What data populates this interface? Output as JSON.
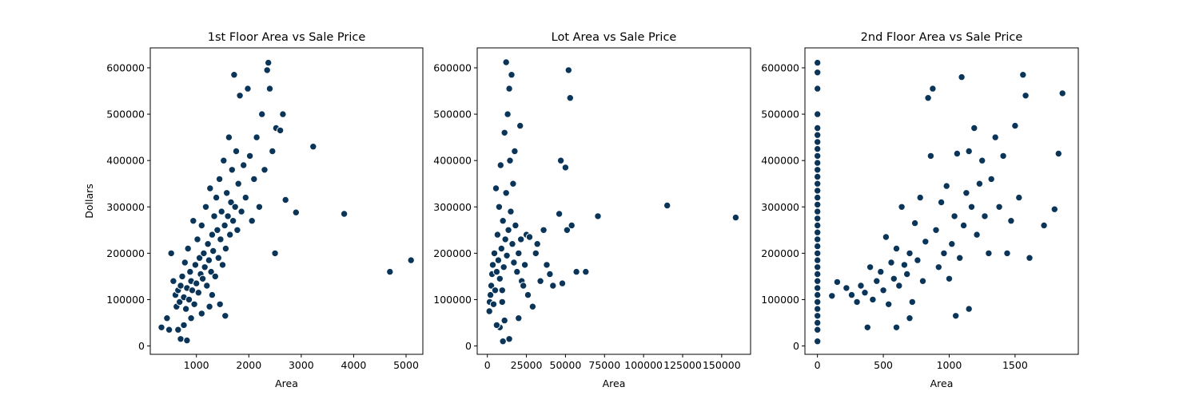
{
  "chart_data": [
    {
      "type": "scatter",
      "title": "1st Floor Area vs Sale Price",
      "xlabel": "Area",
      "ylabel": "Dollars",
      "xlim": [
        120,
        5320
      ],
      "ylim": [
        -18000,
        643000
      ],
      "xticks": [
        1000,
        2000,
        3000,
        4000,
        5000
      ],
      "yticks": [
        0,
        100000,
        200000,
        300000,
        400000,
        500000,
        600000
      ],
      "grid": false,
      "color": "#0a3559",
      "points": [
        [
          334,
          40000
        ],
        [
          438,
          60000
        ],
        [
          480,
          35000
        ],
        [
          520,
          200000
        ],
        [
          560,
          140000
        ],
        [
          600,
          110000
        ],
        [
          620,
          85000
        ],
        [
          650,
          120000
        ],
        [
          680,
          95000
        ],
        [
          700,
          130000
        ],
        [
          730,
          150000
        ],
        [
          760,
          105000
        ],
        [
          780,
          180000
        ],
        [
          800,
          80000
        ],
        [
          820,
          125000
        ],
        [
          840,
          210000
        ],
        [
          860,
          100000
        ],
        [
          880,
          160000
        ],
        [
          900,
          140000
        ],
        [
          920,
          120000
        ],
        [
          940,
          270000
        ],
        [
          960,
          90000
        ],
        [
          980,
          175000
        ],
        [
          1000,
          135000
        ],
        [
          1020,
          230000
        ],
        [
          1040,
          115000
        ],
        [
          1060,
          190000
        ],
        [
          1080,
          155000
        ],
        [
          1100,
          260000
        ],
        [
          1120,
          145000
        ],
        [
          1140,
          200000
        ],
        [
          1160,
          170000
        ],
        [
          1180,
          300000
        ],
        [
          1200,
          130000
        ],
        [
          1220,
          220000
        ],
        [
          1240,
          185000
        ],
        [
          1260,
          340000
        ],
        [
          1280,
          160000
        ],
        [
          1300,
          240000
        ],
        [
          1320,
          205000
        ],
        [
          1340,
          280000
        ],
        [
          1360,
          150000
        ],
        [
          1380,
          320000
        ],
        [
          1400,
          250000
        ],
        [
          1420,
          190000
        ],
        [
          1440,
          360000
        ],
        [
          1460,
          230000
        ],
        [
          1480,
          290000
        ],
        [
          1500,
          175000
        ],
        [
          1520,
          400000
        ],
        [
          1540,
          260000
        ],
        [
          1560,
          210000
        ],
        [
          1580,
          330000
        ],
        [
          1600,
          280000
        ],
        [
          1620,
          450000
        ],
        [
          1640,
          240000
        ],
        [
          1660,
          310000
        ],
        [
          1680,
          380000
        ],
        [
          1700,
          270000
        ],
        [
          1720,
          585000
        ],
        [
          1740,
          300000
        ],
        [
          1760,
          420000
        ],
        [
          1780,
          250000
        ],
        [
          1800,
          350000
        ],
        [
          1830,
          540000
        ],
        [
          1860,
          290000
        ],
        [
          1900,
          390000
        ],
        [
          1940,
          320000
        ],
        [
          1980,
          555000
        ],
        [
          2020,
          410000
        ],
        [
          2060,
          270000
        ],
        [
          2100,
          360000
        ],
        [
          2150,
          450000
        ],
        [
          2200,
          300000
        ],
        [
          2250,
          500000
        ],
        [
          2300,
          380000
        ],
        [
          2350,
          595000
        ],
        [
          2372,
          611000
        ],
        [
          2400,
          555000
        ],
        [
          2450,
          420000
        ],
        [
          2500,
          200000
        ],
        [
          2520,
          470000
        ],
        [
          2600,
          465000
        ],
        [
          2650,
          500000
        ],
        [
          2700,
          315000
        ],
        [
          2900,
          288000
        ],
        [
          3228,
          430000
        ],
        [
          3820,
          285000
        ],
        [
          4692,
          160000
        ],
        [
          5095,
          185000
        ],
        [
          700,
          15000
        ],
        [
          820,
          12000
        ],
        [
          900,
          60000
        ],
        [
          1100,
          70000
        ],
        [
          1300,
          110000
        ],
        [
          1550,
          65000
        ],
        [
          650,
          35000
        ],
        [
          760,
          45000
        ],
        [
          1450,
          90000
        ],
        [
          1250,
          85000
        ]
      ]
    },
    {
      "type": "scatter",
      "title": "Lot Area vs Sale Price",
      "xlabel": "Area",
      "ylabel": "",
      "xlim": [
        -6500,
        168500
      ],
      "ylim": [
        -18000,
        643000
      ],
      "xticks": [
        0,
        25000,
        50000,
        75000,
        100000,
        125000,
        150000
      ],
      "yticks": [
        0,
        100000,
        200000,
        300000,
        400000,
        500000,
        600000
      ],
      "grid": false,
      "color": "#0a3559",
      "points": [
        [
          1300,
          75000
        ],
        [
          1500,
          95000
        ],
        [
          2000,
          110000
        ],
        [
          2500,
          130000
        ],
        [
          3000,
          155000
        ],
        [
          3500,
          175000
        ],
        [
          4000,
          90000
        ],
        [
          4500,
          200000
        ],
        [
          5000,
          120000
        ],
        [
          5500,
          340000
        ],
        [
          6000,
          160000
        ],
        [
          6500,
          240000
        ],
        [
          7000,
          185000
        ],
        [
          7500,
          300000
        ],
        [
          8000,
          145000
        ],
        [
          8500,
          390000
        ],
        [
          9000,
          210000
        ],
        [
          9500,
          120000
        ],
        [
          10000,
          270000
        ],
        [
          10500,
          170000
        ],
        [
          11000,
          460000
        ],
        [
          11500,
          230000
        ],
        [
          12000,
          330000
        ],
        [
          12500,
          195000
        ],
        [
          13000,
          500000
        ],
        [
          13500,
          250000
        ],
        [
          14000,
          555000
        ],
        [
          14500,
          400000
        ],
        [
          15000,
          290000
        ],
        [
          15500,
          585000
        ],
        [
          16000,
          220000
        ],
        [
          16500,
          350000
        ],
        [
          17000,
          180000
        ],
        [
          17500,
          420000
        ],
        [
          18000,
          260000
        ],
        [
          19000,
          160000
        ],
        [
          20000,
          200000
        ],
        [
          21000,
          475000
        ],
        [
          21500,
          230000
        ],
        [
          22000,
          140000
        ],
        [
          23000,
          130000
        ],
        [
          24000,
          175000
        ],
        [
          25000,
          240000
        ],
        [
          26000,
          110000
        ],
        [
          27000,
          235000
        ],
        [
          29000,
          85000
        ],
        [
          31000,
          200000
        ],
        [
          32000,
          220000
        ],
        [
          34000,
          140000
        ],
        [
          36000,
          250000
        ],
        [
          38000,
          175000
        ],
        [
          40000,
          155000
        ],
        [
          42000,
          130000
        ],
        [
          46000,
          285000
        ],
        [
          47000,
          400000
        ],
        [
          48000,
          135000
        ],
        [
          50000,
          385000
        ],
        [
          51000,
          250000
        ],
        [
          52000,
          595000
        ],
        [
          53000,
          535000
        ],
        [
          54000,
          260000
        ],
        [
          57000,
          160000
        ],
        [
          63000,
          160000
        ],
        [
          70761,
          280000
        ],
        [
          115149,
          303000
        ],
        [
          159000,
          277000
        ],
        [
          12000,
          612000
        ],
        [
          10000,
          10000
        ],
        [
          14000,
          15000
        ],
        [
          8000,
          40000
        ],
        [
          11000,
          55000
        ],
        [
          20000,
          60000
        ],
        [
          6000,
          45000
        ],
        [
          9500,
          95000
        ]
      ]
    },
    {
      "type": "scatter",
      "title": "2nd Floor Area vs Sale Price",
      "xlabel": "Area",
      "ylabel": "",
      "xlim": [
        -95,
        1980
      ],
      "ylim": [
        -18000,
        643000
      ],
      "xticks": [
        0,
        500,
        1000,
        1500
      ],
      "yticks": [
        0,
        100000,
        200000,
        300000,
        400000,
        500000,
        600000
      ],
      "grid": false,
      "color": "#0a3559",
      "points": [
        [
          0,
          10000
        ],
        [
          0,
          35000
        ],
        [
          0,
          50000
        ],
        [
          0,
          65000
        ],
        [
          0,
          80000
        ],
        [
          0,
          95000
        ],
        [
          0,
          110000
        ],
        [
          0,
          125000
        ],
        [
          0,
          140000
        ],
        [
          0,
          155000
        ],
        [
          0,
          170000
        ],
        [
          0,
          185000
        ],
        [
          0,
          200000
        ],
        [
          0,
          215000
        ],
        [
          0,
          230000
        ],
        [
          0,
          245000
        ],
        [
          0,
          260000
        ],
        [
          0,
          275000
        ],
        [
          0,
          290000
        ],
        [
          0,
          305000
        ],
        [
          0,
          320000
        ],
        [
          0,
          335000
        ],
        [
          0,
          350000
        ],
        [
          0,
          365000
        ],
        [
          0,
          380000
        ],
        [
          0,
          395000
        ],
        [
          0,
          410000
        ],
        [
          0,
          425000
        ],
        [
          0,
          440000
        ],
        [
          0,
          455000
        ],
        [
          0,
          470000
        ],
        [
          0,
          500000
        ],
        [
          0,
          555000
        ],
        [
          0,
          590000
        ],
        [
          0,
          611000
        ],
        [
          110,
          108000
        ],
        [
          150,
          138000
        ],
        [
          220,
          125000
        ],
        [
          260,
          110000
        ],
        [
          300,
          95000
        ],
        [
          330,
          130000
        ],
        [
          360,
          115000
        ],
        [
          380,
          40000
        ],
        [
          400,
          170000
        ],
        [
          420,
          100000
        ],
        [
          450,
          140000
        ],
        [
          480,
          160000
        ],
        [
          500,
          120000
        ],
        [
          520,
          235000
        ],
        [
          540,
          90000
        ],
        [
          560,
          180000
        ],
        [
          580,
          145000
        ],
        [
          600,
          210000
        ],
        [
          620,
          130000
        ],
        [
          640,
          300000
        ],
        [
          660,
          175000
        ],
        [
          680,
          155000
        ],
        [
          700,
          200000
        ],
        [
          720,
          95000
        ],
        [
          740,
          265000
        ],
        [
          760,
          185000
        ],
        [
          780,
          320000
        ],
        [
          800,
          140000
        ],
        [
          820,
          225000
        ],
        [
          840,
          535000
        ],
        [
          860,
          410000
        ],
        [
          875,
          555000
        ],
        [
          900,
          250000
        ],
        [
          920,
          170000
        ],
        [
          940,
          310000
        ],
        [
          960,
          200000
        ],
        [
          980,
          345000
        ],
        [
          1000,
          145000
        ],
        [
          1020,
          220000
        ],
        [
          1040,
          280000
        ],
        [
          1060,
          415000
        ],
        [
          1080,
          190000
        ],
        [
          1095,
          580000
        ],
        [
          1110,
          260000
        ],
        [
          1130,
          330000
        ],
        [
          1150,
          420000
        ],
        [
          1170,
          300000
        ],
        [
          1190,
          470000
        ],
        [
          1210,
          240000
        ],
        [
          1230,
          350000
        ],
        [
          1250,
          400000
        ],
        [
          1270,
          280000
        ],
        [
          1300,
          200000
        ],
        [
          1320,
          360000
        ],
        [
          1350,
          450000
        ],
        [
          1380,
          300000
        ],
        [
          1410,
          410000
        ],
        [
          1440,
          200000
        ],
        [
          1470,
          270000
        ],
        [
          1500,
          475000
        ],
        [
          1530,
          320000
        ],
        [
          1560,
          585000
        ],
        [
          1580,
          540000
        ],
        [
          1610,
          190000
        ],
        [
          1720,
          260000
        ],
        [
          1800,
          295000
        ],
        [
          1830,
          415000
        ],
        [
          1860,
          545000
        ],
        [
          600,
          40000
        ],
        [
          700,
          60000
        ],
        [
          1050,
          65000
        ],
        [
          1150,
          80000
        ]
      ]
    }
  ]
}
